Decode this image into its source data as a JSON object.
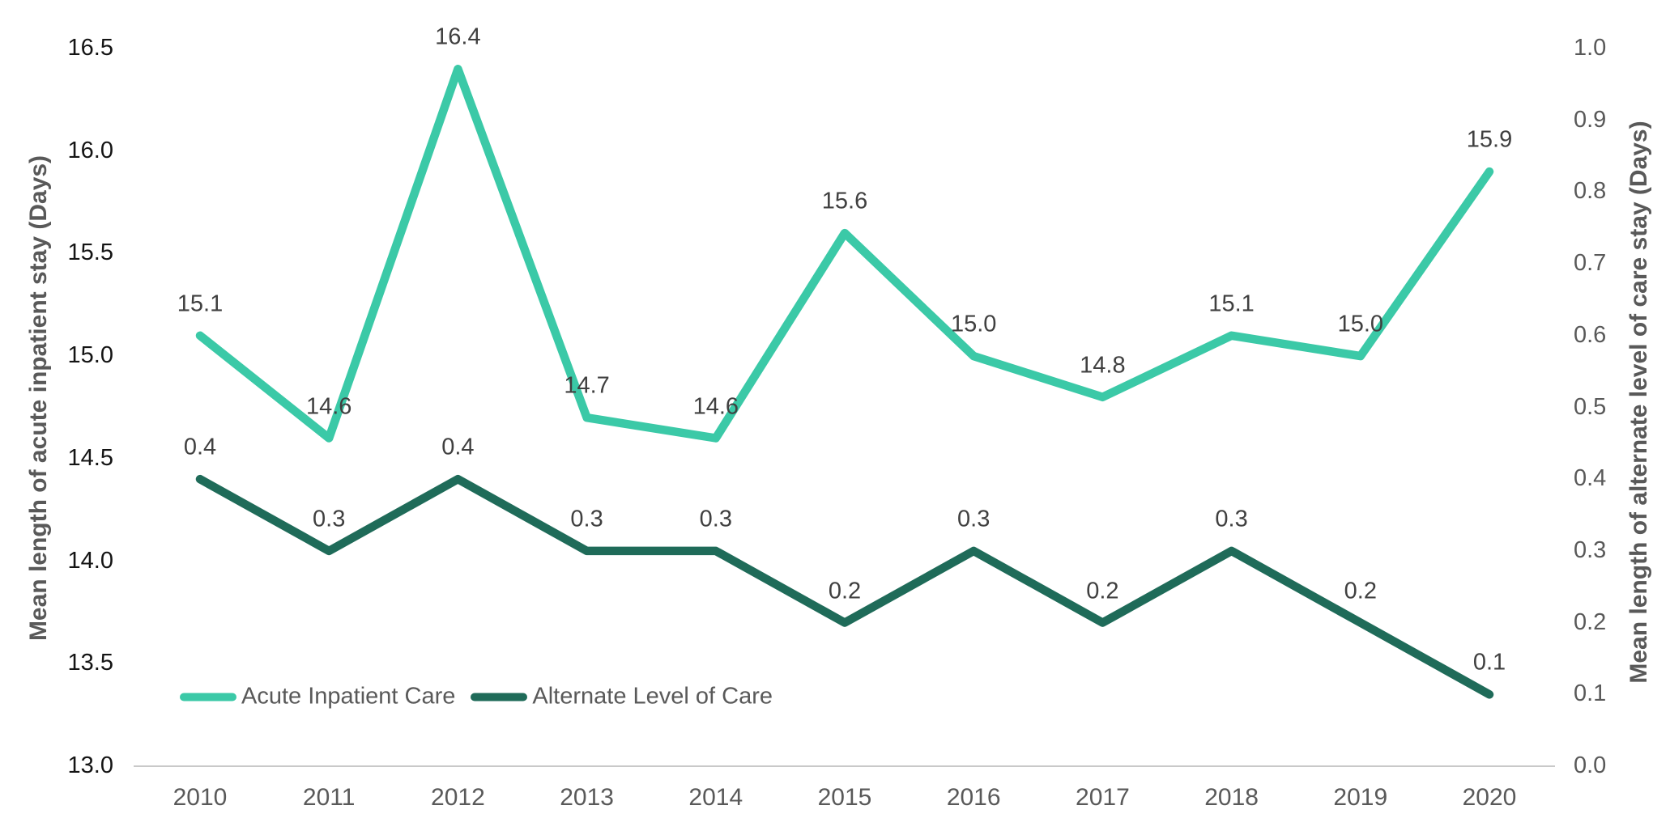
{
  "chart_data": {
    "type": "line",
    "title": "",
    "categories": [
      "2010",
      "2011",
      "2012",
      "2013",
      "2014",
      "2015",
      "2016",
      "2017",
      "2018",
      "2019",
      "2020"
    ],
    "series": [
      {
        "name": "Acute Inpatient Care",
        "axis": "left",
        "color": "#3BC9A7",
        "values": [
          15.1,
          14.6,
          16.4,
          14.7,
          14.6,
          15.6,
          15.0,
          14.8,
          15.1,
          15.0,
          15.9
        ],
        "data_labels": [
          "15.1",
          "14.6",
          "16.4",
          "14.7",
          "14.6",
          "15.6",
          "15.0",
          "14.8",
          "15.1",
          "15.0",
          "15.9"
        ]
      },
      {
        "name": "Alternate Level of Care",
        "axis": "right",
        "color": "#1F6B59",
        "values": [
          0.4,
          0.3,
          0.4,
          0.3,
          0.3,
          0.2,
          0.3,
          0.2,
          0.3,
          0.2,
          0.1
        ],
        "data_labels": [
          "0.4",
          "0.3",
          "0.4",
          "0.3",
          "0.3",
          "0.2",
          "0.3",
          "0.2",
          "0.3",
          "0.2",
          "0.1"
        ]
      }
    ],
    "left_axis": {
      "title": "Mean length of acute inpatient stay (Days)",
      "min": 13.0,
      "max": 16.5,
      "step": 0.5,
      "tick_labels": [
        "13.0",
        "13.5",
        "14.0",
        "14.5",
        "15.0",
        "15.5",
        "16.0",
        "16.5"
      ]
    },
    "right_axis": {
      "title": "Mean length of alternate level of care stay (Days)",
      "min": 0.0,
      "max": 1.0,
      "step": 0.1,
      "tick_labels": [
        "0.0",
        "0.1",
        "0.2",
        "0.3",
        "0.4",
        "0.5",
        "0.6",
        "0.7",
        "0.8",
        "0.9",
        "1.0"
      ]
    },
    "legend": {
      "position": "bottom-left-inside",
      "entries": [
        "Acute Inpatient Care",
        "Alternate Level of Care"
      ]
    },
    "grid": false,
    "axis_line_color": "#C9C9C9",
    "data_label_position": "above"
  }
}
